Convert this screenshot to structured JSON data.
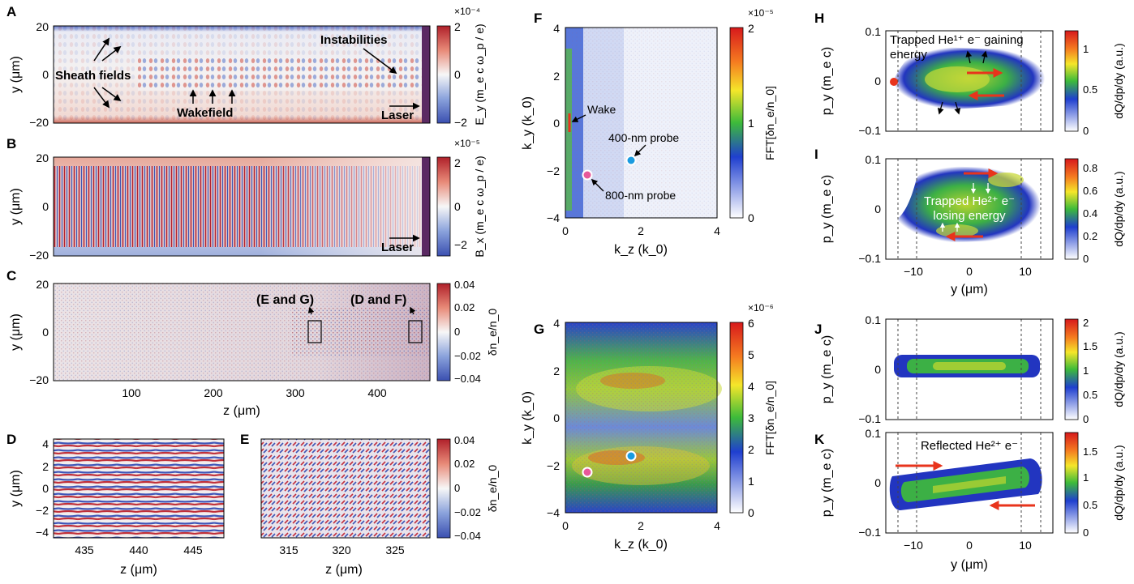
{
  "figure": {
    "panels": {
      "A": {
        "letter": "A",
        "y_label": "y (μm)",
        "y_ticks": [
          "20",
          "0",
          "−20"
        ],
        "cbar_label": "E_y (m_e c ω_p / e)",
        "cbar_exp": "×10⁻⁴",
        "cbar_ticks": [
          "2",
          "0",
          "−2"
        ],
        "annotations": [
          "Sheath fields",
          "Instabilities",
          "Wakefield",
          "Laser"
        ]
      },
      "B": {
        "letter": "B",
        "y_label": "y (μm)",
        "y_ticks": [
          "20",
          "0",
          "−20"
        ],
        "cbar_label": "B_x (m_e c ω_p / e)",
        "cbar_exp": "×10⁻⁵",
        "cbar_ticks": [
          "2",
          "0",
          "−2"
        ],
        "annotations": [
          "Laser"
        ]
      },
      "C": {
        "letter": "C",
        "y_label": "y (μm)",
        "y_ticks": [
          "20",
          "0",
          "−20"
        ],
        "x_label": "z (μm)",
        "x_ticks": [
          "100",
          "200",
          "300",
          "400"
        ],
        "cbar_label": "δn_e/n_0",
        "cbar_ticks": [
          "0.04",
          "0.02",
          "0",
          "−0.02",
          "−0.04"
        ],
        "annotations": [
          "(E and G)",
          "(D and F)"
        ]
      },
      "D": {
        "letter": "D",
        "y_label": "y (μm)",
        "y_ticks": [
          "4",
          "2",
          "0",
          "−2",
          "−4"
        ],
        "x_label": "z (μm)",
        "x_ticks": [
          "435",
          "440",
          "445"
        ]
      },
      "E": {
        "letter": "E",
        "x_label": "z (μm)",
        "x_ticks": [
          "315",
          "320",
          "325"
        ],
        "cbar_label": "δn_e/n_0",
        "cbar_ticks": [
          "0.04",
          "0.02",
          "0",
          "−0.02",
          "−0.04"
        ]
      },
      "F": {
        "letter": "F",
        "y_label": "k_y (k_0)",
        "y_ticks": [
          "4",
          "2",
          "0",
          "−2",
          "−4"
        ],
        "x_label": "k_z (k_0)",
        "x_ticks": [
          "0",
          "2",
          "4"
        ],
        "cbar_label": "FFT[δn_e/n_0]",
        "cbar_exp": "×10⁻⁵",
        "cbar_ticks": [
          "2",
          "1",
          "0"
        ],
        "annotations": [
          "Wake",
          "400-nm probe",
          "800-nm probe"
        ]
      },
      "G": {
        "letter": "G",
        "y_label": "k_y (k_0)",
        "y_ticks": [
          "4",
          "2",
          "0",
          "−2",
          "−4"
        ],
        "x_label": "k_z (k_0)",
        "x_ticks": [
          "0",
          "2",
          "4"
        ],
        "cbar_label": "FFT[δn_e/n_0]",
        "cbar_exp": "×10⁻⁶",
        "cbar_ticks": [
          "6",
          "5",
          "4",
          "3",
          "2",
          "1",
          "0"
        ]
      },
      "H": {
        "letter": "H",
        "y_label": "p_y (m_e c)",
        "y_ticks": [
          "0.1",
          "0",
          "−0.1"
        ],
        "cbar_label": "dQ/dp/dy (a.u.)",
        "cbar_ticks": [
          "1",
          "0.5",
          "0"
        ],
        "annotation_line1": "Trapped He¹⁺ e⁻ gaining",
        "annotation_line2": "energy"
      },
      "I": {
        "letter": "I",
        "y_label": "p_y (m_e c)",
        "y_ticks": [
          "0.1",
          "0",
          "−0.1"
        ],
        "x_label": "y (μm)",
        "x_ticks": [
          "−10",
          "0",
          "10"
        ],
        "cbar_label": "dQ/dp/dy (a.u.)",
        "cbar_ticks": [
          "0.8",
          "0.6",
          "0.4",
          "0.2",
          "0"
        ],
        "annotation_line1": "Trapped He²⁺ e⁻",
        "annotation_line2": "losing energy"
      },
      "J": {
        "letter": "J",
        "y_label": "p_y (m_e c)",
        "y_ticks": [
          "0.1",
          "0",
          "−0.1"
        ],
        "cbar_label": "dQ/dp/dy (a.u.)",
        "cbar_ticks": [
          "2",
          "1.5",
          "1",
          "0.5",
          "0"
        ]
      },
      "K": {
        "letter": "K",
        "y_label": "p_y (m_e c)",
        "y_ticks": [
          "0.1",
          "0",
          "−0.1"
        ],
        "x_label": "y (μm)",
        "x_ticks": [
          "−10",
          "0",
          "10"
        ],
        "cbar_label": "dQ/dp/dy (a.u.)",
        "cbar_ticks": [
          "1.5",
          "1",
          "0.5",
          "0"
        ],
        "annotation": "Reflected He²⁺ e⁻"
      }
    },
    "colors": {
      "diverging_negative": "#3a4fb0",
      "diverging_positive": "#b0202a",
      "laser": "#5b2a63",
      "highlight_arrow": "#e8341c",
      "probe_400nm": "#1a9be0",
      "probe_800nm": "#e8589a",
      "wake_marker": "#e8341c"
    }
  },
  "chart_data": [
    {
      "panel": "A",
      "type": "heatmap",
      "xlim": [
        0,
        460
      ],
      "ylim": [
        -20,
        20
      ],
      "clim": [
        -0.0002,
        0.0002
      ],
      "colormap": "diverging blue-white-red",
      "annotations": [
        "Sheath fields",
        "Instabilities",
        "Wakefield",
        "Laser"
      ]
    },
    {
      "panel": "B",
      "type": "heatmap",
      "xlim": [
        0,
        460
      ],
      "ylim": [
        -20,
        20
      ],
      "clim": [
        -2e-05,
        2e-05
      ],
      "colormap": "diverging blue-white-red",
      "annotations": [
        "Laser"
      ]
    },
    {
      "panel": "C",
      "type": "heatmap",
      "xlim": [
        0,
        460
      ],
      "ylim": [
        -20,
        20
      ],
      "clim": [
        -0.04,
        0.04
      ],
      "colormap": "diverging blue-white-red",
      "regions": [
        {
          "label": "(E and G)",
          "z": [
            313,
            328
          ],
          "y": [
            -4.5,
            4.5
          ]
        },
        {
          "label": "(D and F)",
          "z": [
            432,
            448
          ],
          "y": [
            -4.5,
            4.5
          ]
        }
      ]
    },
    {
      "panel": "D",
      "type": "heatmap",
      "xlim": [
        432,
        448
      ],
      "ylim": [
        -4.5,
        4.5
      ],
      "clim": [
        -0.04,
        0.04
      ]
    },
    {
      "panel": "E",
      "type": "heatmap",
      "xlim": [
        312,
        328
      ],
      "ylim": [
        -4.5,
        4.5
      ],
      "clim": [
        -0.04,
        0.04
      ]
    },
    {
      "panel": "F",
      "type": "heatmap",
      "xlim": [
        0,
        4
      ],
      "ylim": [
        -4,
        4
      ],
      "clim": [
        0,
        2e-05
      ],
      "colormap": "jet-like (white at 0)",
      "markers": [
        {
          "label": "400-nm probe",
          "kz": 1.7,
          "ky": -1.05
        },
        {
          "label": "800-nm probe",
          "kz": 0.55,
          "ky": -1.6
        },
        {
          "label": "Wake",
          "kz": 0.1,
          "ky": 0
        }
      ]
    },
    {
      "panel": "G",
      "type": "heatmap",
      "xlim": [
        0,
        4
      ],
      "ylim": [
        -4,
        4
      ],
      "clim": [
        0,
        6e-06
      ],
      "colormap": "jet-like (white at 0)",
      "markers": [
        {
          "label": "400-nm probe",
          "kz": 1.7,
          "ky": -1.05
        },
        {
          "label": "800-nm probe",
          "kz": 0.55,
          "ky": -1.65
        }
      ]
    },
    {
      "panel": "H",
      "type": "heatmap",
      "xlim": [
        -15,
        15
      ],
      "ylim": [
        -0.1,
        0.1
      ],
      "clim": [
        0,
        1.3
      ],
      "dashed_lines_y_um": [
        -12.5,
        -9.5,
        9,
        12
      ]
    },
    {
      "panel": "I",
      "type": "heatmap",
      "xlim": [
        -15,
        15
      ],
      "ylim": [
        -0.1,
        0.1
      ],
      "clim": [
        0,
        0.9
      ],
      "dashed_lines_y_um": [
        -12.5,
        -9.5,
        9,
        12
      ]
    },
    {
      "panel": "J",
      "type": "heatmap",
      "xlim": [
        -15,
        15
      ],
      "ylim": [
        -0.1,
        0.1
      ],
      "clim": [
        0,
        2.2
      ],
      "dashed_lines_y_um": [
        -12.5,
        -9.5,
        9,
        12
      ]
    },
    {
      "panel": "K",
      "type": "heatmap",
      "xlim": [
        -15,
        15
      ],
      "ylim": [
        -0.1,
        0.1
      ],
      "clim": [
        0,
        1.8
      ],
      "dashed_lines_y_um": [
        -12.5,
        -9.5,
        9,
        12
      ]
    }
  ]
}
